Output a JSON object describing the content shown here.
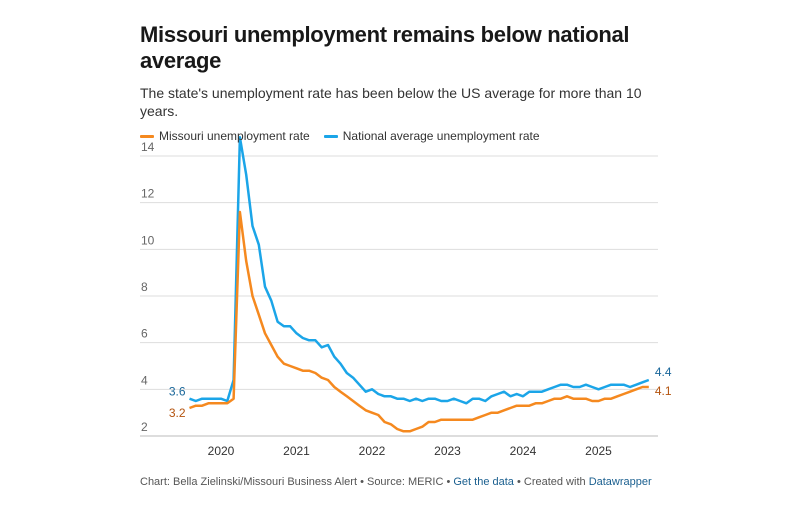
{
  "title": "Missouri unemployment remains below national average",
  "subtitle": "The state's unemployment rate has been below the US average for more than 10 years.",
  "footer": {
    "credit": "Chart: Bella Zielinski/Missouri Business Alert • Source: MERIC • ",
    "data_link": "Get the data",
    "sep": " • Created with ",
    "tool_link": "Datawrapper"
  },
  "chart_data": {
    "type": "line",
    "title": "Missouri unemployment remains below national average",
    "x_start": "2019-08",
    "x_end": "2025-09",
    "x_tick_labels": [
      "2020",
      "2021",
      "2022",
      "2023",
      "2024",
      "2025"
    ],
    "y_ticks": [
      2,
      4,
      6,
      8,
      10,
      12,
      14
    ],
    "ylim": [
      2,
      14.8
    ],
    "grid": true,
    "legend": "top-left",
    "series": [
      {
        "name": "Missouri unemployment rate",
        "color": "#f5891f",
        "label_color": "#b4530e",
        "start_label": "3.2",
        "end_label": "4.1",
        "values": [
          3.2,
          3.3,
          3.3,
          3.4,
          3.4,
          3.4,
          3.4,
          3.6,
          11.6,
          9.5,
          8.0,
          7.2,
          6.4,
          5.9,
          5.4,
          5.1,
          5.0,
          4.9,
          4.8,
          4.8,
          4.7,
          4.5,
          4.4,
          4.1,
          3.9,
          3.7,
          3.5,
          3.3,
          3.1,
          3.0,
          2.9,
          2.6,
          2.5,
          2.3,
          2.2,
          2.2,
          2.3,
          2.4,
          2.6,
          2.6,
          2.7,
          2.7,
          2.7,
          2.7,
          2.7,
          2.7,
          2.8,
          2.9,
          3.0,
          3.0,
          3.1,
          3.2,
          3.3,
          3.3,
          3.3,
          3.4,
          3.4,
          3.5,
          3.6,
          3.6,
          3.7,
          3.6,
          3.6,
          3.6,
          3.5,
          3.5,
          3.6,
          3.6,
          3.7,
          3.8,
          3.9,
          4.0,
          4.1,
          4.1
        ]
      },
      {
        "name": "National average unemployment rate",
        "color": "#1ba5e8",
        "label_color": "#1a679a",
        "start_label": "3.6",
        "end_label": "4.4",
        "values": [
          3.6,
          3.5,
          3.6,
          3.6,
          3.6,
          3.6,
          3.5,
          4.4,
          14.8,
          13.2,
          11.0,
          10.2,
          8.4,
          7.8,
          6.9,
          6.7,
          6.7,
          6.4,
          6.2,
          6.1,
          6.1,
          5.8,
          5.9,
          5.4,
          5.1,
          4.7,
          4.5,
          4.2,
          3.9,
          4.0,
          3.8,
          3.7,
          3.7,
          3.6,
          3.6,
          3.5,
          3.6,
          3.5,
          3.6,
          3.6,
          3.5,
          3.5,
          3.6,
          3.5,
          3.4,
          3.6,
          3.6,
          3.5,
          3.7,
          3.8,
          3.9,
          3.7,
          3.8,
          3.7,
          3.9,
          3.9,
          3.9,
          4.0,
          4.1,
          4.2,
          4.2,
          4.1,
          4.1,
          4.2,
          4.1,
          4.0,
          4.1,
          4.2,
          4.2,
          4.2,
          4.1,
          4.2,
          4.3,
          4.4
        ]
      }
    ]
  }
}
